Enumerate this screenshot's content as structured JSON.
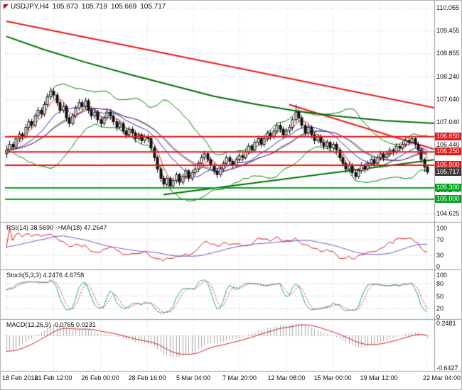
{
  "header": {
    "symbol": "USDJPY,H4",
    "open": "105.673",
    "high": "105.719",
    "low": "105.669",
    "close": "105.717"
  },
  "colors": {
    "background": "#ffffff",
    "grid": "#d4d4d4",
    "text": "#151515",
    "bull": "#ffffff",
    "bear": "#111111",
    "candle_border": "#111111",
    "bb": "#008000",
    "separator": "#9a9a9a"
  },
  "chart_data": {
    "type": "candlestick",
    "title": "USDJPY,H4",
    "symbol": "USDJPY",
    "timeframe": "H4",
    "quote": {
      "open": 105.673,
      "high": 105.719,
      "low": 105.669,
      "close": 105.717
    },
    "ylim": [
      104.625,
      110.055
    ],
    "x_labels": [
      "18 Feb 2018",
      "21 Feb 12:00",
      "26 Feb 00:00",
      "28 Feb 16:00",
      "5 Mar 04:00",
      "7 Mar 20:00",
      "12 Mar 08:00",
      "15 Mar 00:00",
      "19 Mar 12:00",
      "22 Mar 04:00"
    ],
    "y_ticks": [
      {
        "label": "110.055",
        "price": 110.055
      },
      {
        "label": "109.455",
        "price": 109.455
      },
      {
        "label": "108.855",
        "price": 108.855
      },
      {
        "label": "108.240",
        "price": 108.24
      },
      {
        "label": "107.640",
        "price": 107.64
      },
      {
        "label": "107.040",
        "price": 107.04
      },
      {
        "label": "106.440",
        "price": 106.44
      },
      {
        "label": "105.840",
        "price": 105.84
      },
      {
        "label": "105.240",
        "price": 105.24
      },
      {
        "label": "104.625",
        "price": 104.625
      }
    ],
    "price_tags": [
      {
        "label": "106.650",
        "price": 106.65,
        "bg": "#e81717",
        "line": true
      },
      {
        "label": "106.250",
        "price": 106.25,
        "bg": "#e81717",
        "line": true
      },
      {
        "label": "105.900",
        "price": 105.9,
        "bg": "#e81717",
        "line": true
      },
      {
        "label": "105.717",
        "price": 105.717,
        "bg": "#3d3d3d",
        "line": false
      },
      {
        "label": "105.300",
        "price": 105.3,
        "bg": "#00a51e",
        "line": true
      },
      {
        "label": "105.000",
        "price": 105.0,
        "bg": "#00a51e",
        "line": true
      }
    ],
    "candles": [
      [
        106.2,
        106.42,
        106.08,
        106.3
      ],
      [
        106.3,
        106.55,
        106.24,
        106.45
      ],
      [
        106.45,
        106.52,
        106.3,
        106.38
      ],
      [
        106.38,
        106.68,
        106.33,
        106.6
      ],
      [
        106.6,
        106.8,
        106.52,
        106.72
      ],
      [
        106.72,
        106.78,
        106.55,
        106.65
      ],
      [
        106.65,
        106.98,
        106.6,
        106.9
      ],
      [
        106.9,
        107.12,
        106.82,
        107.05
      ],
      [
        107.05,
        107.12,
        106.86,
        106.95
      ],
      [
        106.95,
        107.28,
        106.9,
        107.2
      ],
      [
        107.2,
        107.44,
        107.12,
        107.35
      ],
      [
        107.35,
        107.42,
        107.15,
        107.25
      ],
      [
        107.25,
        107.58,
        107.18,
        107.5
      ],
      [
        107.5,
        107.8,
        107.44,
        107.7
      ],
      [
        107.7,
        107.95,
        107.62,
        107.85
      ],
      [
        107.85,
        107.92,
        107.65,
        107.75
      ],
      [
        107.75,
        107.82,
        107.46,
        107.55
      ],
      [
        107.55,
        107.62,
        107.26,
        107.35
      ],
      [
        107.35,
        107.55,
        107.28,
        107.45
      ],
      [
        107.45,
        107.5,
        107.05,
        107.15
      ],
      [
        107.15,
        107.24,
        106.9,
        107.0
      ],
      [
        107.0,
        107.28,
        106.94,
        107.2
      ],
      [
        107.2,
        107.48,
        107.14,
        107.4
      ],
      [
        107.4,
        107.65,
        107.34,
        107.55
      ],
      [
        107.55,
        107.62,
        107.36,
        107.45
      ],
      [
        107.45,
        107.68,
        107.38,
        107.6
      ],
      [
        107.6,
        107.66,
        107.26,
        107.35
      ],
      [
        107.35,
        107.44,
        107.1,
        107.2
      ],
      [
        107.2,
        107.4,
        107.12,
        107.3
      ],
      [
        107.3,
        107.36,
        107.0,
        107.1
      ],
      [
        107.1,
        107.18,
        106.9,
        107.0
      ],
      [
        107.0,
        107.22,
        106.94,
        107.15
      ],
      [
        107.15,
        107.4,
        107.08,
        107.3
      ],
      [
        107.3,
        107.38,
        107.1,
        107.2
      ],
      [
        107.2,
        107.26,
        106.96,
        107.05
      ],
      [
        107.05,
        107.12,
        106.8,
        106.9
      ],
      [
        106.9,
        107.08,
        106.84,
        107.0
      ],
      [
        107.0,
        107.06,
        106.72,
        106.8
      ],
      [
        106.8,
        106.88,
        106.6,
        106.7
      ],
      [
        106.7,
        106.92,
        106.64,
        106.85
      ],
      [
        106.85,
        106.92,
        106.66,
        106.75
      ],
      [
        106.75,
        106.82,
        106.5,
        106.6
      ],
      [
        106.6,
        106.78,
        106.54,
        106.7
      ],
      [
        106.7,
        106.76,
        106.46,
        106.55
      ],
      [
        106.55,
        106.72,
        106.48,
        106.65
      ],
      [
        106.65,
        106.72,
        106.5,
        106.6
      ],
      [
        106.6,
        106.66,
        106.25,
        106.35
      ],
      [
        106.35,
        106.42,
        106.0,
        106.1
      ],
      [
        106.1,
        106.16,
        105.7,
        105.8
      ],
      [
        105.8,
        105.88,
        105.45,
        105.55
      ],
      [
        105.55,
        105.62,
        105.28,
        105.4
      ],
      [
        105.4,
        105.62,
        105.32,
        105.55
      ],
      [
        105.55,
        105.6,
        105.25,
        105.35
      ],
      [
        105.35,
        105.58,
        105.28,
        105.5
      ],
      [
        105.5,
        105.72,
        105.42,
        105.65
      ],
      [
        105.65,
        105.7,
        105.36,
        105.45
      ],
      [
        105.45,
        105.68,
        105.38,
        105.6
      ],
      [
        105.6,
        105.82,
        105.52,
        105.75
      ],
      [
        105.75,
        105.8,
        105.46,
        105.55
      ],
      [
        105.55,
        105.78,
        105.48,
        105.7
      ],
      [
        105.7,
        105.88,
        105.62,
        105.8
      ],
      [
        105.8,
        106.02,
        105.72,
        105.95
      ],
      [
        105.95,
        106.18,
        105.88,
        106.1
      ],
      [
        106.1,
        106.28,
        106.02,
        106.2
      ],
      [
        106.2,
        106.26,
        105.96,
        106.05
      ],
      [
        106.05,
        106.12,
        105.82,
        105.9
      ],
      [
        105.9,
        105.96,
        105.66,
        105.75
      ],
      [
        105.75,
        105.82,
        105.56,
        105.65
      ],
      [
        105.65,
        105.88,
        105.58,
        105.8
      ],
      [
        105.8,
        106.02,
        105.72,
        105.95
      ],
      [
        105.95,
        106.18,
        105.88,
        106.1
      ],
      [
        106.1,
        106.16,
        105.92,
        106.0
      ],
      [
        106.0,
        106.06,
        105.82,
        105.9
      ],
      [
        105.9,
        106.12,
        105.84,
        106.05
      ],
      [
        106.05,
        106.22,
        105.98,
        106.15
      ],
      [
        106.15,
        106.22,
        106.0,
        106.1
      ],
      [
        106.1,
        106.32,
        106.04,
        106.25
      ],
      [
        106.25,
        106.48,
        106.18,
        106.4
      ],
      [
        106.4,
        106.46,
        106.22,
        106.3
      ],
      [
        106.3,
        106.58,
        106.24,
        106.5
      ],
      [
        106.5,
        106.68,
        106.42,
        106.6
      ],
      [
        106.6,
        106.66,
        106.36,
        106.45
      ],
      [
        106.45,
        106.68,
        106.38,
        106.6
      ],
      [
        106.6,
        106.82,
        106.52,
        106.75
      ],
      [
        106.75,
        106.82,
        106.56,
        106.65
      ],
      [
        106.65,
        106.88,
        106.58,
        106.8
      ],
      [
        106.8,
        107.02,
        106.72,
        106.95
      ],
      [
        106.95,
        107.02,
        106.76,
        106.85
      ],
      [
        106.85,
        106.92,
        106.6,
        106.7
      ],
      [
        106.7,
        106.88,
        106.62,
        106.8
      ],
      [
        106.8,
        106.98,
        106.72,
        106.9
      ],
      [
        106.9,
        107.18,
        106.82,
        107.1
      ],
      [
        107.1,
        107.5,
        107.02,
        107.3
      ],
      [
        107.3,
        107.38,
        107.05,
        107.15
      ],
      [
        107.15,
        107.22,
        106.86,
        106.95
      ],
      [
        106.95,
        107.02,
        106.66,
        106.75
      ],
      [
        106.75,
        106.98,
        106.68,
        106.9
      ],
      [
        106.9,
        106.96,
        106.6,
        106.7
      ],
      [
        106.7,
        106.78,
        106.46,
        106.55
      ],
      [
        106.55,
        106.72,
        106.48,
        106.65
      ],
      [
        106.65,
        106.72,
        106.4,
        106.5
      ],
      [
        106.5,
        106.58,
        106.3,
        106.4
      ],
      [
        106.4,
        106.58,
        106.32,
        106.5
      ],
      [
        106.5,
        106.56,
        106.26,
        106.35
      ],
      [
        106.35,
        106.52,
        106.28,
        106.45
      ],
      [
        106.45,
        106.52,
        106.2,
        106.3
      ],
      [
        106.3,
        106.36,
        106.0,
        106.1
      ],
      [
        106.1,
        106.18,
        105.86,
        105.95
      ],
      [
        105.95,
        106.02,
        105.7,
        105.8
      ],
      [
        105.8,
        105.98,
        105.72,
        105.9
      ],
      [
        105.9,
        105.96,
        105.6,
        105.7
      ],
      [
        105.7,
        105.78,
        105.52,
        105.6
      ],
      [
        105.6,
        105.82,
        105.54,
        105.75
      ],
      [
        105.75,
        105.98,
        105.68,
        105.9
      ],
      [
        105.9,
        105.96,
        105.7,
        105.8
      ],
      [
        105.8,
        106.02,
        105.74,
        105.95
      ],
      [
        105.95,
        106.12,
        105.88,
        106.05
      ],
      [
        106.05,
        106.12,
        105.86,
        105.95
      ],
      [
        105.95,
        106.18,
        105.88,
        106.1
      ],
      [
        106.1,
        106.28,
        106.02,
        106.2
      ],
      [
        106.2,
        106.26,
        106.0,
        106.1
      ],
      [
        106.1,
        106.28,
        106.04,
        106.2
      ],
      [
        106.2,
        106.38,
        106.12,
        106.3
      ],
      [
        106.3,
        106.36,
        106.14,
        106.25
      ],
      [
        106.25,
        106.48,
        106.18,
        106.4
      ],
      [
        106.4,
        106.46,
        106.24,
        106.35
      ],
      [
        106.35,
        106.52,
        106.28,
        106.45
      ],
      [
        106.45,
        106.62,
        106.38,
        106.55
      ],
      [
        106.55,
        106.65,
        106.42,
        106.5
      ],
      [
        106.5,
        106.64,
        106.44,
        106.6
      ],
      [
        106.6,
        106.64,
        106.36,
        106.45
      ],
      [
        106.45,
        106.52,
        106.2,
        106.3
      ],
      [
        106.3,
        106.36,
        105.95,
        106.05
      ],
      [
        106.05,
        106.1,
        105.72,
        105.85
      ],
      [
        105.85,
        105.88,
        105.66,
        105.717
      ]
    ],
    "overlays": {
      "bollinger": {
        "period": 20,
        "deviation": 2,
        "color": "#008000"
      },
      "moving_averages": [
        {
          "period": 5,
          "color": "#ee1010"
        },
        {
          "period": 13,
          "color": "#2020c8"
        },
        {
          "period": 21,
          "color": "#c020c0"
        }
      ],
      "trend_lines": [
        {
          "name": "descending-resistance",
          "color": "#e81717",
          "width": 2,
          "points": [
            [
              0,
              109.7
            ],
            [
              137,
              107.4
            ]
          ]
        },
        {
          "name": "short-descending-resistance",
          "color": "#e81717",
          "width": 2,
          "points": [
            [
              90,
              107.5
            ],
            [
              137,
              106.3
            ]
          ]
        },
        {
          "name": "long-term-ma-green",
          "color": "#007000",
          "width": 2,
          "points": [
            [
              0,
              109.3
            ],
            [
              12,
              108.95
            ],
            [
              25,
              108.62
            ],
            [
              39,
              108.3
            ],
            [
              53,
              108.0
            ],
            [
              66,
              107.72
            ],
            [
              80,
              107.5
            ],
            [
              93,
              107.32
            ],
            [
              107,
              107.18
            ],
            [
              120,
              107.08
            ],
            [
              137,
              107.0
            ]
          ]
        },
        {
          "name": "ascending-support",
          "color": "#007000",
          "width": 2,
          "points": [
            [
              50,
              105.12
            ],
            [
              137,
              106.05
            ]
          ]
        }
      ]
    },
    "indicators": {
      "rsi": {
        "label": "RSI(14) 38.5690 ->MA(18) 47.2647",
        "period": 14,
        "ma_period": 18,
        "value": 38.569,
        "ma_value": 47.2647,
        "ticks": [
          "100",
          "70",
          "30",
          "0"
        ],
        "dotted_levels": [
          70,
          30
        ],
        "color": "#d02020",
        "ma_color": "#6a5acd"
      },
      "stoch": {
        "label": "Stoch(5,3,3) 4.2476 4.6758",
        "k": 4.2476,
        "d": 4.6758,
        "ticks": [
          "100",
          "80",
          "50",
          "20",
          "0"
        ],
        "dotted_levels": [
          80,
          50,
          20
        ],
        "main_color": "#20a4a4",
        "signal_color": "#d02020"
      },
      "macd": {
        "label": "MACD(12,26,9) -0.0765 0.0231",
        "value": -0.0765,
        "signal": 0.0231,
        "ticks": [
          "0.2481",
          "-0.6427"
        ],
        "range": [
          0.2481,
          -0.6427
        ],
        "hist_color": "#a8a8a8",
        "signal_color": "#cc2020"
      }
    }
  }
}
